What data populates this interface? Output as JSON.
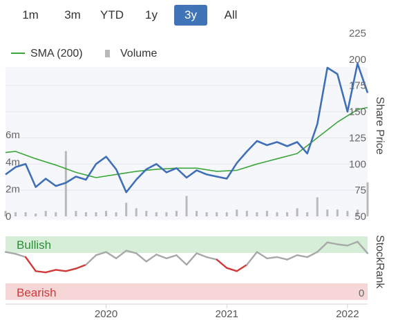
{
  "ranges": {
    "buttons": [
      "1m",
      "3m",
      "YTD",
      "1y",
      "3y",
      "All"
    ],
    "active": "3y"
  },
  "colors": {
    "price": "#3f6fb6",
    "sma": "#3aa63a",
    "volume": "#b9b9b9",
    "stockrank": "#a8a8a8",
    "stockrank_bearish": "#d23a3a",
    "bullish_band": "#d6eed8",
    "bearish_band": "#f6d6d6",
    "active_button": "#3f74b9"
  },
  "chart_data": [
    {
      "type": "line",
      "x_ticks": [
        "2020",
        "2021",
        "2022"
      ],
      "ylabel": "Share Price",
      "ylim": [
        50,
        225
      ],
      "y_ticks": [
        50,
        75,
        100,
        125,
        150,
        175,
        200,
        225
      ],
      "volume_ticks": [
        "0",
        "2m",
        "4m",
        "6m"
      ],
      "volume_ylim": [
        0,
        6
      ],
      "legend": {
        "position": "top-left",
        "entries": [
          "SMA (200)",
          "Volume"
        ]
      },
      "x_domain": [
        "2019-03",
        "2022-03"
      ],
      "series": [
        {
          "name": "SMA (200)",
          "x": [
            "2019-03",
            "2019-04",
            "2019-06",
            "2019-08",
            "2019-10",
            "2019-12",
            "2020-02",
            "2020-04",
            "2020-06",
            "2020-08",
            "2020-10",
            "2020-12",
            "2021-02",
            "2021-04",
            "2021-06",
            "2021-08",
            "2021-10",
            "2021-12",
            "2022-02",
            "2022-03"
          ],
          "values": [
            111,
            112,
            105,
            99,
            92,
            87,
            90,
            93,
            95,
            96,
            96,
            93,
            94,
            100,
            105,
            110,
            125,
            140,
            152,
            154
          ]
        },
        {
          "name": "Share Price",
          "x": [
            "2019-03",
            "2019-04",
            "2019-05",
            "2019-06",
            "2019-07",
            "2019-08",
            "2019-09",
            "2019-10",
            "2019-11",
            "2019-12",
            "2020-01",
            "2020-02",
            "2020-03",
            "2020-04",
            "2020-05",
            "2020-06",
            "2020-07",
            "2020-08",
            "2020-09",
            "2020-10",
            "2020-11",
            "2020-12",
            "2021-01",
            "2021-02",
            "2021-03",
            "2021-04",
            "2021-05",
            "2021-06",
            "2021-07",
            "2021-08",
            "2021-09",
            "2021-10",
            "2021-11",
            "2021-12",
            "2022-01",
            "2022-02",
            "2022-03"
          ],
          "values": [
            90,
            97,
            100,
            78,
            86,
            79,
            82,
            88,
            85,
            100,
            107,
            95,
            73,
            85,
            95,
            100,
            92,
            96,
            87,
            94,
            90,
            88,
            86,
            101,
            112,
            122,
            118,
            121,
            117,
            121,
            110,
            138,
            192,
            186,
            150,
            196,
            168
          ]
        },
        {
          "name": "Volume (m)",
          "x": [
            "2019-03",
            "2019-04",
            "2019-05",
            "2019-06",
            "2019-07",
            "2019-08",
            "2019-09",
            "2019-10",
            "2019-11",
            "2019-12",
            "2020-01",
            "2020-02",
            "2020-03",
            "2020-04",
            "2020-05",
            "2020-06",
            "2020-07",
            "2020-08",
            "2020-09",
            "2020-10",
            "2020-11",
            "2020-12",
            "2021-01",
            "2021-02",
            "2021-03",
            "2021-04",
            "2021-05",
            "2021-06",
            "2021-07",
            "2021-08",
            "2021-09",
            "2021-10",
            "2021-11",
            "2021-12",
            "2022-01",
            "2022-02",
            "2022-03"
          ],
          "values": [
            0.4,
            0.3,
            0.3,
            0.2,
            0.4,
            0.3,
            4.8,
            0.4,
            0.3,
            0.3,
            0.4,
            0.3,
            1.0,
            0.6,
            0.4,
            0.3,
            0.3,
            0.4,
            1.5,
            0.4,
            0.3,
            0.3,
            0.3,
            0.5,
            0.4,
            0.3,
            0.4,
            0.3,
            0.3,
            0.6,
            0.3,
            1.4,
            0.5,
            0.5,
            0.4,
            0.5,
            2.5
          ]
        }
      ]
    },
    {
      "type": "line",
      "ylabel": "StockRank",
      "bands": [
        "Bullish",
        "Bearish"
      ],
      "y_ticks": [
        0
      ],
      "ylim": [
        0,
        100
      ],
      "x_domain": [
        "2019-03",
        "2022-03"
      ],
      "series": [
        {
          "name": "StockRank",
          "x": [
            "2019-03",
            "2019-04",
            "2019-05",
            "2019-06",
            "2019-07",
            "2019-08",
            "2019-09",
            "2019-10",
            "2019-11",
            "2019-12",
            "2020-01",
            "2020-02",
            "2020-03",
            "2020-04",
            "2020-05",
            "2020-06",
            "2020-07",
            "2020-08",
            "2020-09",
            "2020-10",
            "2020-11",
            "2020-12",
            "2021-01",
            "2021-02",
            "2021-03",
            "2021-04",
            "2021-05",
            "2021-06",
            "2021-07",
            "2021-08",
            "2021-09",
            "2021-10",
            "2021-11",
            "2021-12",
            "2022-01",
            "2022-02",
            "2022-03"
          ],
          "values": [
            60,
            57,
            52,
            30,
            28,
            32,
            30,
            34,
            40,
            55,
            60,
            50,
            62,
            58,
            45,
            56,
            50,
            55,
            40,
            58,
            52,
            48,
            35,
            30,
            40,
            60,
            50,
            52,
            48,
            55,
            52,
            60,
            75,
            72,
            70,
            76,
            58
          ]
        }
      ]
    }
  ]
}
